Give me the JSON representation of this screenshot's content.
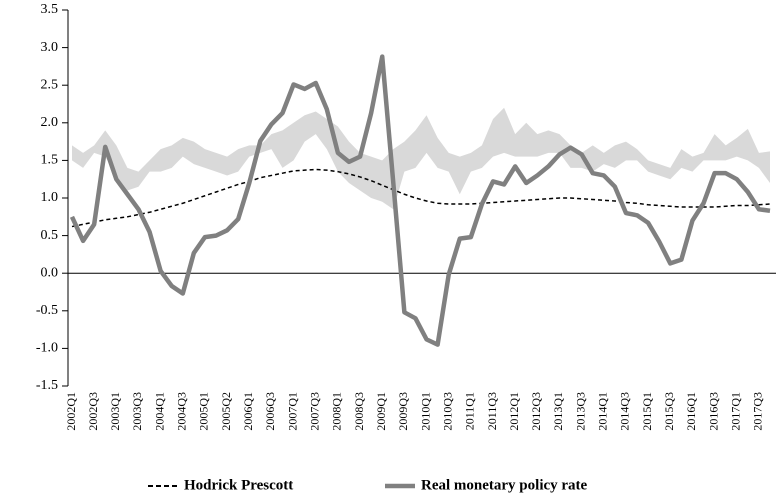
{
  "chart_data": {
    "type": "line",
    "categories": [
      "2002Q1",
      null,
      "2002Q3",
      null,
      "2003Q1",
      null,
      "2003Q3",
      null,
      "2004Q1",
      null,
      "2004Q3",
      null,
      "2005Q1",
      null,
      "2005Q2",
      null,
      "2006Q1",
      null,
      "2006Q3",
      null,
      "2007Q1",
      null,
      "2007Q3",
      null,
      "2008Q1",
      null,
      "2008Q3",
      null,
      "2009Q1",
      null,
      "2009Q3",
      null,
      "2010Q1",
      null,
      "2010Q3",
      null,
      "2011Q1",
      null,
      "2011Q3",
      null,
      "2012Q1",
      null,
      "2012Q3",
      null,
      "2013Q1",
      null,
      "2013Q3",
      null,
      "2014Q1",
      null,
      "2014Q3",
      null,
      "2015Q1",
      null,
      "2015Q3",
      null,
      "2016Q1",
      null,
      "2016Q3",
      null,
      "2017Q1",
      null,
      "2017Q3",
      null
    ],
    "series": [
      {
        "name": "Hodrick Prescott",
        "color": "#000000",
        "dashed": true,
        "width": 1.5,
        "values": [
          0.62,
          0.65,
          0.68,
          0.71,
          0.73,
          0.75,
          0.78,
          0.81,
          0.85,
          0.89,
          0.93,
          0.98,
          1.03,
          1.08,
          1.13,
          1.18,
          1.22,
          1.27,
          1.3,
          1.33,
          1.36,
          1.37,
          1.38,
          1.37,
          1.35,
          1.32,
          1.28,
          1.23,
          1.17,
          1.11,
          1.05,
          1.0,
          0.96,
          0.93,
          0.92,
          0.92,
          0.92,
          0.93,
          0.94,
          0.95,
          0.96,
          0.97,
          0.98,
          0.99,
          1.0,
          1.0,
          0.99,
          0.98,
          0.97,
          0.96,
          0.94,
          0.93,
          0.91,
          0.9,
          0.89,
          0.88,
          0.88,
          0.88,
          0.88,
          0.89,
          0.9,
          0.9,
          0.91,
          0.92
        ]
      },
      {
        "name": "Real monetary policy rate",
        "color": "#808080",
        "dashed": false,
        "width": 4.5,
        "values": [
          0.75,
          0.43,
          0.65,
          1.68,
          1.25,
          1.05,
          0.85,
          0.55,
          0.03,
          -0.17,
          -0.27,
          0.27,
          0.48,
          0.5,
          0.57,
          0.72,
          1.2,
          1.76,
          1.98,
          2.13,
          2.51,
          2.45,
          2.53,
          2.18,
          1.6,
          1.48,
          1.55,
          2.13,
          2.88,
          1.2,
          -0.52,
          -0.6,
          -0.88,
          -0.95,
          -0.02,
          0.46,
          0.48,
          0.92,
          1.22,
          1.18,
          1.42,
          1.2,
          1.3,
          1.42,
          1.58,
          1.67,
          1.58,
          1.33,
          1.3,
          1.15,
          0.8,
          0.77,
          0.67,
          0.42,
          0.13,
          0.18,
          0.7,
          0.93,
          1.33,
          1.33,
          1.25,
          1.08,
          0.85,
          0.83
        ]
      }
    ],
    "band": {
      "color": "#d9d9d9",
      "upper": [
        1.7,
        1.6,
        1.7,
        1.9,
        1.7,
        1.4,
        1.35,
        1.5,
        1.65,
        1.7,
        1.8,
        1.75,
        1.65,
        1.6,
        1.55,
        1.65,
        1.7,
        1.7,
        1.85,
        1.9,
        2.0,
        2.1,
        2.15,
        2.05,
        1.95,
        1.75,
        1.6,
        1.55,
        1.5,
        1.65,
        1.75,
        1.9,
        2.1,
        1.8,
        1.6,
        1.55,
        1.6,
        1.7,
        2.05,
        2.2,
        1.85,
        2.0,
        1.85,
        1.9,
        1.85,
        1.7,
        1.6,
        1.7,
        1.6,
        1.7,
        1.75,
        1.65,
        1.5,
        1.45,
        1.4,
        1.65,
        1.55,
        1.6,
        1.85,
        1.7,
        1.8,
        1.92,
        1.6,
        1.62
      ],
      "lower": [
        1.5,
        1.4,
        1.6,
        1.55,
        1.3,
        1.1,
        1.15,
        1.35,
        1.35,
        1.4,
        1.55,
        1.45,
        1.4,
        1.35,
        1.3,
        1.35,
        1.55,
        1.6,
        1.65,
        1.4,
        1.5,
        1.75,
        1.85,
        1.65,
        1.35,
        1.2,
        1.1,
        1.0,
        0.95,
        0.85,
        1.35,
        1.4,
        1.6,
        1.4,
        1.35,
        1.05,
        1.35,
        1.4,
        1.55,
        1.6,
        1.55,
        1.55,
        1.55,
        1.6,
        1.6,
        1.4,
        1.4,
        1.35,
        1.45,
        1.4,
        1.5,
        1.5,
        1.35,
        1.3,
        1.25,
        1.4,
        1.35,
        1.5,
        1.5,
        1.5,
        1.55,
        1.5,
        1.4,
        1.2
      ]
    },
    "ylim": [
      -1.5,
      3.5
    ],
    "yticks": [
      -1.5,
      {
        "value": -1,
        "label": "-1.0"
      },
      -0.5,
      {
        "value": 0,
        "label": "0.0"
      },
      0.5,
      {
        "value": 1,
        "label": "1.0"
      },
      1.5,
      {
        "value": 2,
        "label": "2.0"
      },
      2.5,
      {
        "value": 3,
        "label": "3.0"
      },
      3.5
    ],
    "legend": "bottom"
  }
}
